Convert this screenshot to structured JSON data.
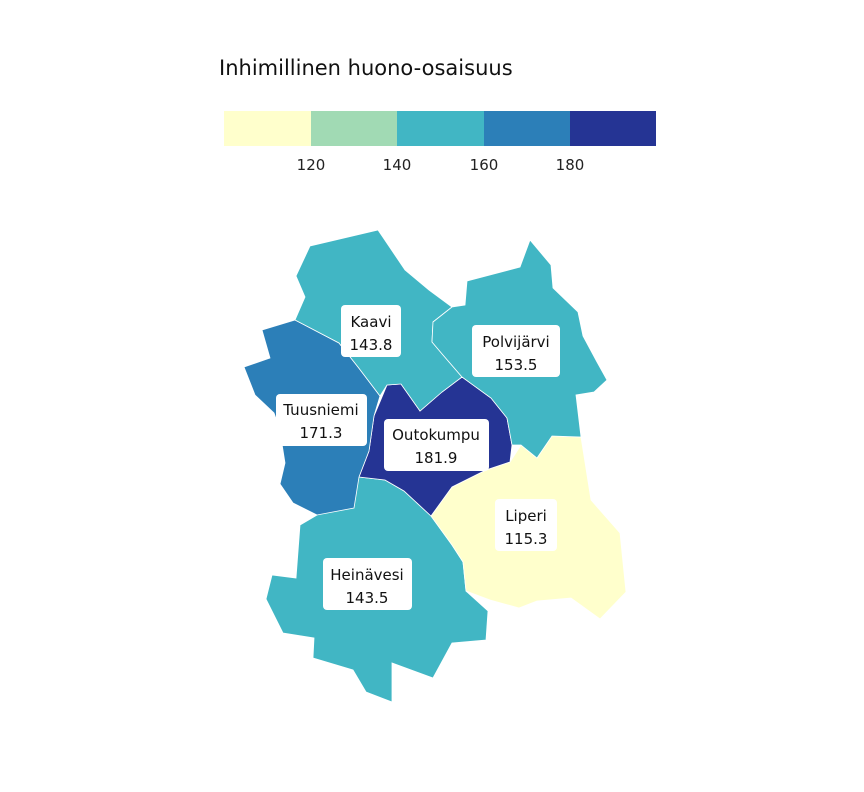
{
  "legend": {
    "title": "Inhimillinen huono-osaisuus",
    "breaks": [
      120,
      140,
      160,
      180
    ],
    "bins": [
      {
        "color": "#ffffcc"
      },
      {
        "color": "#a1dab4"
      },
      {
        "color": "#41b6c4"
      },
      {
        "color": "#2c7fb8"
      },
      {
        "color": "#253494"
      }
    ]
  },
  "regions": [
    {
      "name": "Kaavi",
      "value": "143.8",
      "color": "#41b6c4"
    },
    {
      "name": "Polvijärvi",
      "value": "153.5",
      "color": "#41b6c4"
    },
    {
      "name": "Tuusniemi",
      "value": "171.3",
      "color": "#2c7fb8"
    },
    {
      "name": "Outokumpu",
      "value": "181.9",
      "color": "#253494"
    },
    {
      "name": "Liperi",
      "value": "115.3",
      "color": "#ffffcc"
    },
    {
      "name": "Heinävesi",
      "value": "143.5",
      "color": "#41b6c4"
    }
  ]
}
